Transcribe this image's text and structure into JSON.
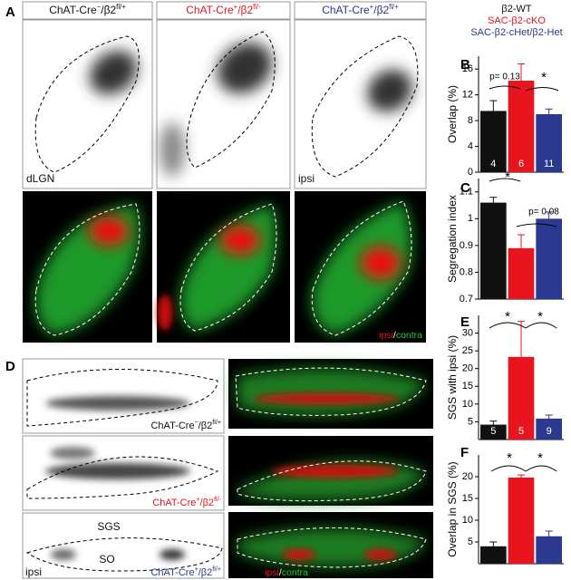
{
  "legend": [
    {
      "name": "β2-WT",
      "color": "#111111"
    },
    {
      "name": "SAC-β2-cKO",
      "color": "#e8141e"
    },
    {
      "name": "SAC-β2-cHet/β2-Het",
      "color": "#2b3990"
    }
  ],
  "genotypes": [
    {
      "base": "ChAT-Cre",
      "sup": "−",
      "mid": "/β2",
      "sup2": "fl/+",
      "color": "#111111"
    },
    {
      "base": "ChAT-Cre",
      "sup": "+",
      "mid": "/β2",
      "sup2": "fl/-",
      "color": "#e8141e"
    },
    {
      "base": "ChAT-Cre",
      "sup": "+",
      "mid": "/β2",
      "sup2": "fl/+",
      "color": "#2b3990"
    }
  ],
  "panel_letters": [
    "A",
    "B",
    "C",
    "D",
    "E",
    "F"
  ],
  "image_labels": {
    "dlgn": "dLGN",
    "ipsi": "ipsi",
    "ipsi_red": "ipsi",
    "slash": "/",
    "contra": "contra",
    "sgs": "SGS",
    "so": "SO"
  },
  "chart_data": [
    {
      "type": "bar",
      "ylabel": "Overlap (%)",
      "values": [
        9.5,
        14.2,
        9.0
      ],
      "errors": [
        1.6,
        2.6,
        0.8
      ],
      "counts": [
        4,
        6,
        11
      ],
      "ylim": [
        0,
        18
      ],
      "yticks": [
        0,
        4,
        8,
        12,
        16
      ],
      "annotations": [
        "p= 0.13",
        "*"
      ]
    },
    {
      "type": "bar",
      "ylabel": "Segregation index",
      "values": [
        1.06,
        0.89,
        1.0
      ],
      "errors": [
        0.02,
        0.05,
        0.025
      ],
      "ylim": [
        0.7,
        1.15
      ],
      "yticks": [
        0.7,
        0.8,
        0.9,
        1,
        1.1
      ],
      "annotations": [
        "*",
        "p= 0.08"
      ]
    },
    {
      "type": "bar",
      "ylabel": "SGS with ipsi (%)",
      "values": [
        4.2,
        23.3,
        5.9
      ],
      "errors": [
        1,
        10,
        1
      ],
      "counts": [
        5,
        5,
        9
      ],
      "ylim": [
        0,
        35
      ],
      "yticks": [
        5,
        10,
        15,
        20,
        25,
        30
      ],
      "annotations": [
        "*",
        "*"
      ]
    },
    {
      "type": "bar",
      "ylabel": "Overlap in SGS (%)",
      "values": [
        4,
        19.8,
        6.3
      ],
      "errors": [
        1,
        0.6,
        1.2
      ],
      "ylim": [
        0,
        25
      ],
      "yticks": [
        5,
        10,
        15,
        20
      ],
      "annotations": [
        "*",
        "*"
      ]
    }
  ]
}
